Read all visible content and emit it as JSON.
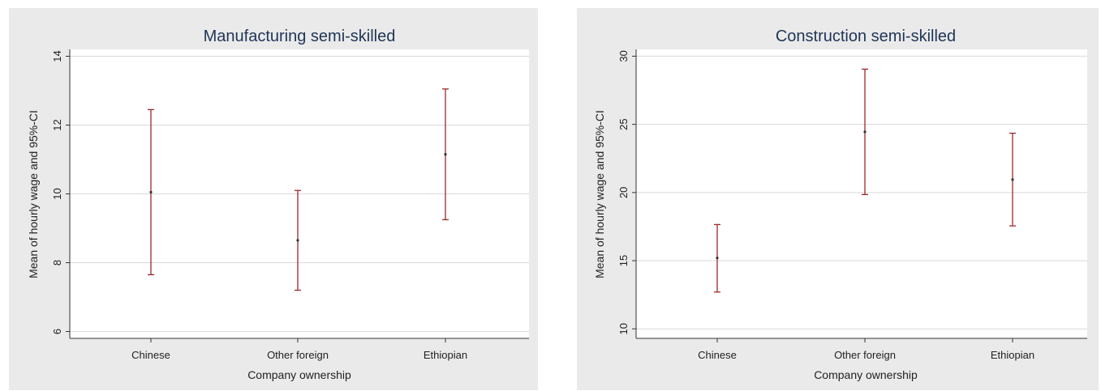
{
  "chart_data": [
    {
      "type": "errorbar",
      "title": "Manufacturing semi-skilled",
      "xlabel": "Company ownership",
      "ylabel": "Mean of hourly wage and 95%-CI",
      "categories": [
        "Chinese",
        "Other foreign",
        "Ethiopian"
      ],
      "ylim": [
        5.8,
        14.2
      ],
      "yticks": [
        6,
        8,
        10,
        12,
        14
      ],
      "series": [
        {
          "means": [
            10.05,
            8.65,
            11.15
          ],
          "lower": [
            7.65,
            7.2,
            9.25
          ],
          "upper": [
            12.45,
            10.1,
            13.05
          ]
        }
      ],
      "grid": true,
      "colors": {
        "bars": "#9c2a2a",
        "grid": "#d9d9d9",
        "plot_bg": "#ffffff",
        "panel_bg": "#eaeaea",
        "title": "#1f3557"
      }
    },
    {
      "type": "errorbar",
      "title": "Construction semi-skilled",
      "xlabel": "Company ownership",
      "ylabel": "Mean of hourly wage and 95%-CI",
      "categories": [
        "Chinese",
        "Other foreign",
        "Ethiopian"
      ],
      "ylim": [
        9.3,
        30.5
      ],
      "yticks": [
        10,
        15,
        20,
        25,
        30
      ],
      "series": [
        {
          "means": [
            15.2,
            24.45,
            20.95
          ],
          "lower": [
            12.7,
            19.85,
            17.55
          ],
          "upper": [
            17.65,
            29.05,
            24.35
          ]
        }
      ],
      "grid": true,
      "colors": {
        "bars": "#9c2a2a",
        "grid": "#d9d9d9",
        "plot_bg": "#ffffff",
        "panel_bg": "#eaeaea",
        "title": "#1f3557"
      }
    }
  ]
}
